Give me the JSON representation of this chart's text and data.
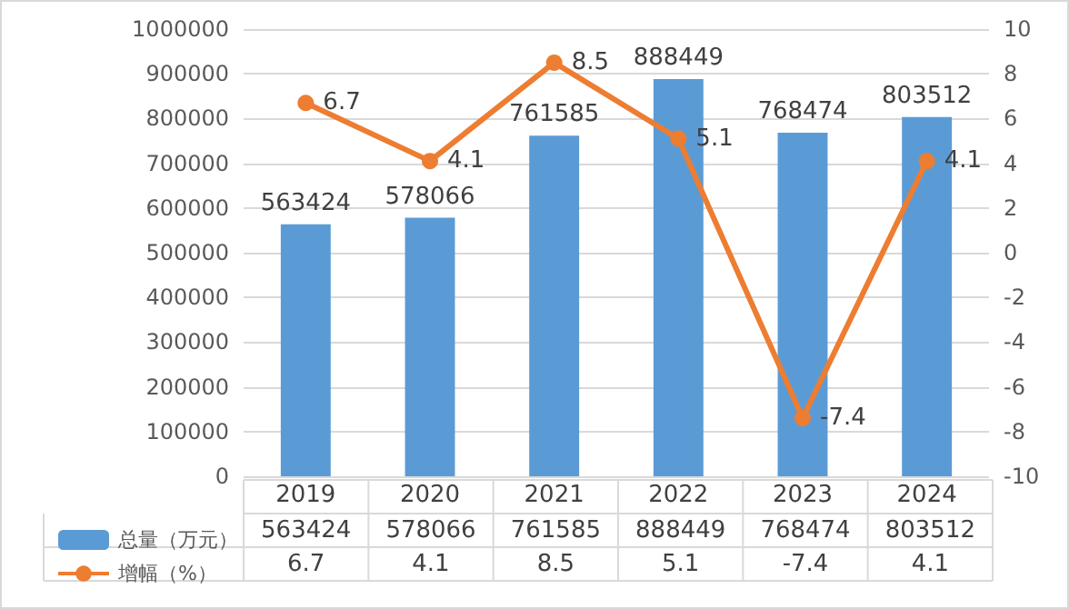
{
  "chart_data": {
    "type": "bar",
    "categories": [
      "2019",
      "2020",
      "2021",
      "2022",
      "2023",
      "2024"
    ],
    "series": [
      {
        "name": "总量（万元）",
        "color": "#5b9bd5",
        "values": [
          563424,
          578066,
          761585,
          888449,
          768474,
          803512
        ],
        "value_labels": [
          "563424",
          "578066",
          "761585",
          "888449",
          "768474",
          "803512"
        ]
      },
      {
        "name": "增幅（%）",
        "type": "line",
        "axis": "y2",
        "color": "#ed7d31",
        "marker": "circle",
        "values": [
          6.7,
          4.1,
          8.5,
          5.1,
          -7.4,
          4.1
        ],
        "value_labels": [
          "6.7",
          "4.1",
          "8.5",
          "5.1",
          "-7.4",
          "4.1"
        ]
      }
    ],
    "annotations": [
      "563424",
      "578066",
      "761585",
      "888449",
      "768474",
      "803512",
      "6.7",
      "4.1",
      "8.5",
      "5.1",
      "-7.4",
      "4.1"
    ],
    "ylim": [
      0,
      1000000
    ],
    "yticks": [
      0,
      100000,
      200000,
      300000,
      400000,
      500000,
      600000,
      700000,
      800000,
      900000,
      1000000
    ],
    "y2lim": [
      -10,
      10
    ],
    "y2ticks": [
      -10,
      -8,
      -6,
      -4,
      -2,
      0,
      2,
      4,
      6,
      8,
      10
    ],
    "grid": "y",
    "legend": "bottom"
  }
}
